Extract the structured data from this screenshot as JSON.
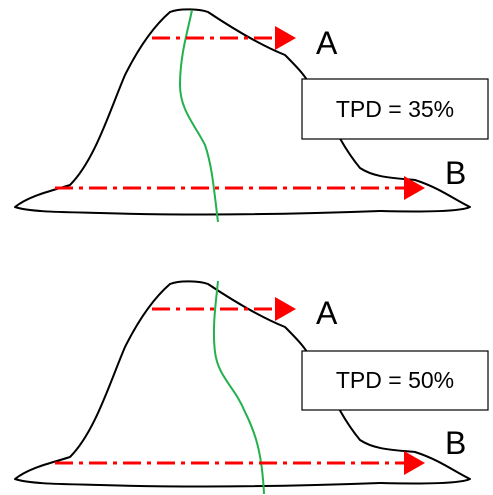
{
  "panels": [
    {
      "label_a": "A",
      "label_b": "B",
      "tpd": "TPD = 35%"
    },
    {
      "label_a": "A",
      "label_b": "B",
      "tpd": "TPD = 50%"
    }
  ]
}
